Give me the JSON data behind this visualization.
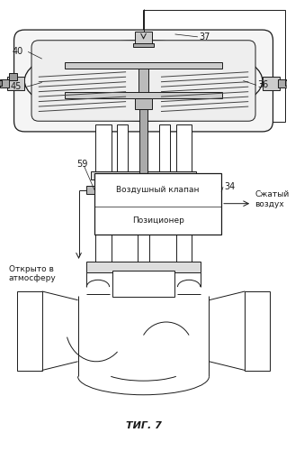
{
  "title": "ΤИГ. 7",
  "label_37": "37",
  "label_40": "40",
  "label_45": "45",
  "label_36": "36",
  "label_34": "34",
  "label_59": "59",
  "text_air_valve": "Воздушный клапан",
  "text_positioner": "Позиционер",
  "text_open_atm": "Открыто в\nатмосферу",
  "text_compressed": "Сжатый\nвоздух",
  "bg_color": "#ffffff",
  "line_color": "#1a1a1a",
  "fig_width": 3.28,
  "fig_height": 5.0,
  "dpi": 100
}
